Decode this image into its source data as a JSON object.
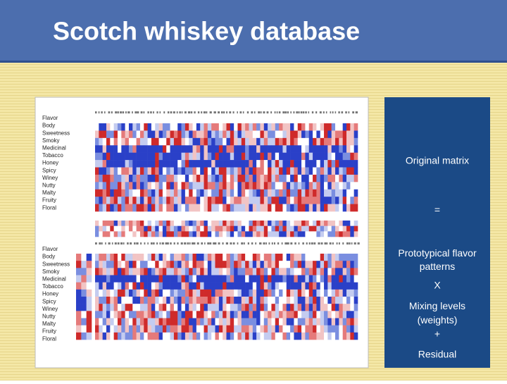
{
  "header": {
    "title": "Scotch whiskey database"
  },
  "original_matrix": {
    "row_labels": [
      "Flavor",
      "Body",
      "Sweetness",
      "Smoky",
      "Medicinal",
      "Tobacco",
      "Honey",
      "Spicy",
      "Winey",
      "Nutty",
      "Malty",
      "Fruity",
      "Floral"
    ]
  },
  "decomposition": {
    "row_labels": [
      "Flavor",
      "Body",
      "Sweetness",
      "Smoky",
      "Medicinal",
      "Tobacco",
      "Honey",
      "Spicy",
      "Winey",
      "Nutty",
      "Malty",
      "Fruity",
      "Floral"
    ]
  },
  "side_panel": {
    "lines": [
      "Original matrix",
      "=",
      "Prototypical flavor patterns",
      "X",
      "Mixing levels (weights)",
      "+",
      "Residual"
    ]
  }
}
